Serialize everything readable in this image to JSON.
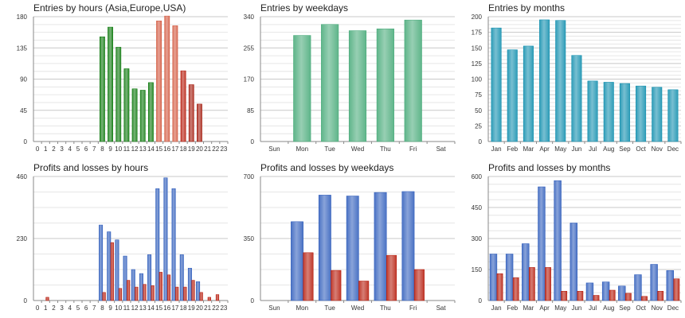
{
  "chart_data": [
    {
      "type": "bar",
      "title": "Entries by hours (Asia,Europe,USA)",
      "categories": [
        "0",
        "1",
        "2",
        "3",
        "4",
        "5",
        "6",
        "7",
        "8",
        "9",
        "10",
        "11",
        "12",
        "13",
        "14",
        "15",
        "16",
        "17",
        "18",
        "19",
        "20",
        "21",
        "22",
        "23"
      ],
      "series": [
        {
          "values": [
            0,
            0,
            0,
            0,
            0,
            0,
            0,
            0,
            151,
            165,
            136,
            105,
            76,
            74,
            85,
            174,
            181,
            167,
            102,
            82,
            54,
            0,
            0,
            0
          ]
        }
      ],
      "bar_colors": [
        "#2e8b2e",
        "#2e8b2e",
        "#2e8b2e",
        "#2e8b2e",
        "#2e8b2e",
        "#2e8b2e",
        "#2e8b2e",
        "#2e8b2e",
        "#2e8b2e",
        "#2e8b2e",
        "#2e8b2e",
        "#2e8b2e",
        "#2e8b2e",
        "#2e8b2e",
        "#2e8b2e",
        "#d9705a",
        "#d9705a",
        "#d9705a",
        "#c0392b",
        "#b03a2e",
        "#b03a2e",
        "#b03a2e",
        "#b03a2e",
        "#b03a2e"
      ],
      "yticks": [
        0,
        45,
        90,
        135,
        180
      ],
      "ylim": [
        0,
        180
      ],
      "grid": true
    },
    {
      "type": "bar",
      "title": "Entries by weekdays",
      "categories": [
        "Sun",
        "Mon",
        "Tue",
        "Wed",
        "Thu",
        "Fri",
        "Sat"
      ],
      "series": [
        {
          "values": [
            0,
            289,
            319,
            302,
            307,
            331,
            0
          ]
        }
      ],
      "bar_colors": [
        "#5fb58a",
        "#5fb58a",
        "#5fb58a",
        "#5fb58a",
        "#5fb58a",
        "#5fb58a",
        "#5fb58a"
      ],
      "yticks": [
        0,
        85,
        170,
        255,
        340
      ],
      "ylim": [
        0,
        340
      ],
      "grid": true
    },
    {
      "type": "bar",
      "title": "Entries by months",
      "categories": [
        "Jan",
        "Feb",
        "Mar",
        "Apr",
        "May",
        "Jun",
        "Jul",
        "Aug",
        "Sep",
        "Oct",
        "Nov",
        "Dec"
      ],
      "series": [
        {
          "values": [
            182,
            147,
            153,
            195,
            194,
            138,
            97,
            95,
            93,
            89,
            87,
            83
          ]
        }
      ],
      "bar_colors": [
        "#2f9db8",
        "#2f9db8",
        "#2f9db8",
        "#2f9db8",
        "#2f9db8",
        "#2f9db8",
        "#2f9db8",
        "#2f9db8",
        "#2f9db8",
        "#2f9db8",
        "#2f9db8",
        "#2f9db8"
      ],
      "yticks": [
        0,
        25,
        50,
        75,
        100,
        125,
        150,
        175,
        200
      ],
      "ylim": [
        0,
        200
      ],
      "grid": true
    },
    {
      "type": "bar",
      "title": "Profits and losses by hours",
      "categories": [
        "0",
        "1",
        "2",
        "3",
        "4",
        "5",
        "6",
        "7",
        "8",
        "9",
        "10",
        "11",
        "12",
        "13",
        "14",
        "15",
        "16",
        "17",
        "18",
        "19",
        "20",
        "21",
        "22",
        "23"
      ],
      "series": [
        {
          "values": [
            0,
            0,
            0,
            0,
            0,
            0,
            0,
            0,
            280,
            255,
            225,
            165,
            115,
            100,
            170,
            415,
            455,
            415,
            170,
            120,
            70,
            0,
            0,
            0
          ]
        },
        {
          "values": [
            0,
            12,
            0,
            0,
            0,
            0,
            0,
            0,
            30,
            215,
            45,
            75,
            50,
            60,
            55,
            105,
            95,
            50,
            50,
            75,
            30,
            12,
            22,
            0
          ]
        }
      ],
      "series_colors": [
        "#4a72c4",
        "#c0392b"
      ],
      "yticks": [
        0,
        230,
        460
      ],
      "ylim": [
        0,
        460
      ],
      "grid": true
    },
    {
      "type": "bar",
      "title": "Profits and losses by weekdays",
      "categories": [
        "Sun",
        "Mon",
        "Tue",
        "Wed",
        "Thu",
        "Fri",
        "Sat"
      ],
      "series": [
        {
          "values": [
            0,
            445,
            595,
            590,
            610,
            615,
            0
          ]
        },
        {
          "values": [
            0,
            270,
            170,
            110,
            255,
            175,
            0
          ]
        }
      ],
      "series_colors": [
        "#4a72c4",
        "#c0392b"
      ],
      "yticks": [
        0,
        350,
        700
      ],
      "ylim": [
        0,
        700
      ],
      "grid": true
    },
    {
      "type": "bar",
      "title": "Profits and losses by months",
      "categories": [
        "Jan",
        "Feb",
        "Mar",
        "Apr",
        "May",
        "Jun",
        "Jul",
        "Aug",
        "Sep",
        "Oct",
        "Nov",
        "Dec"
      ],
      "series": [
        {
          "values": [
            225,
            225,
            275,
            550,
            580,
            375,
            85,
            90,
            70,
            125,
            175,
            145
          ]
        },
        {
          "values": [
            130,
            110,
            160,
            160,
            45,
            45,
            25,
            50,
            35,
            20,
            45,
            105
          ]
        }
      ],
      "series_colors": [
        "#4a72c4",
        "#c0392b"
      ],
      "yticks": [
        0,
        150,
        300,
        450,
        600
      ],
      "ylim": [
        0,
        600
      ],
      "grid": true
    }
  ]
}
